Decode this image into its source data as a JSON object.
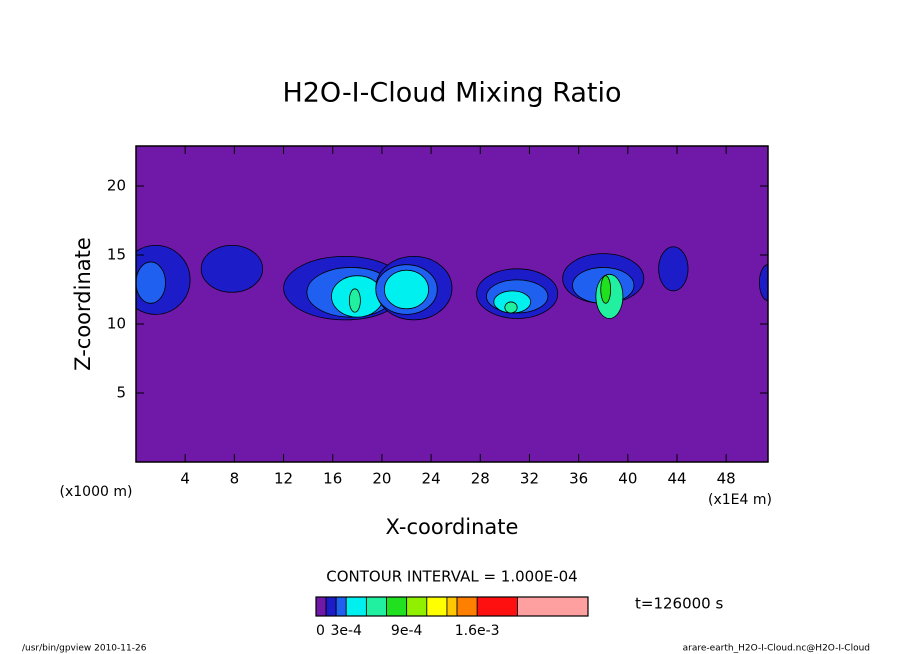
{
  "chart_data": {
    "type": "contour",
    "title": "H2O-I-Cloud Mixing Ratio",
    "xlabel": "X-coordinate",
    "ylabel": "Z-coordinate",
    "xunit": "(x1E4 m)",
    "yunit": "(x1000 m)",
    "xlim": [
      0,
      51.4
    ],
    "ylim": [
      0,
      22.9
    ],
    "xticks": [
      4,
      8,
      12,
      16,
      20,
      24,
      28,
      32,
      36,
      40,
      44,
      48
    ],
    "yticks": [
      5,
      10,
      15,
      20
    ],
    "background": "#7018a8",
    "regions": [
      {
        "x": 1.6,
        "z": 13.2,
        "w": 5.6,
        "h": 5.0,
        "level": 0.0001
      },
      {
        "x": 1.2,
        "z": 13.0,
        "w": 2.4,
        "h": 3.0,
        "level": 0.0002
      },
      {
        "x": 7.8,
        "z": 14.0,
        "w": 5.0,
        "h": 3.4,
        "level": 0.0001
      },
      {
        "x": 17.0,
        "z": 12.6,
        "w": 10.0,
        "h": 4.6,
        "level": 0.0001
      },
      {
        "x": 17.5,
        "z": 12.3,
        "w": 7.2,
        "h": 3.6,
        "level": 0.0002
      },
      {
        "x": 18.0,
        "z": 12.0,
        "w": 4.2,
        "h": 3.0,
        "level": 0.0003
      },
      {
        "x": 17.8,
        "z": 11.7,
        "w": 0.9,
        "h": 1.7,
        "level": 0.0005
      },
      {
        "x": 22.6,
        "z": 12.6,
        "w": 6.2,
        "h": 4.6,
        "level": 0.0001
      },
      {
        "x": 22.0,
        "z": 12.5,
        "w": 5.0,
        "h": 3.6,
        "level": 0.0002
      },
      {
        "x": 22.0,
        "z": 12.5,
        "w": 3.6,
        "h": 2.8,
        "level": 0.0003
      },
      {
        "x": 31.0,
        "z": 12.2,
        "w": 6.6,
        "h": 3.6,
        "level": 0.0001
      },
      {
        "x": 31.0,
        "z": 12.0,
        "w": 5.0,
        "h": 2.4,
        "level": 0.0002
      },
      {
        "x": 30.6,
        "z": 11.6,
        "w": 3.0,
        "h": 1.6,
        "level": 0.0003
      },
      {
        "x": 30.5,
        "z": 11.2,
        "w": 1.0,
        "h": 0.8,
        "level": 0.0005
      },
      {
        "x": 38.0,
        "z": 13.3,
        "w": 6.6,
        "h": 3.6,
        "level": 0.0001
      },
      {
        "x": 38.0,
        "z": 12.8,
        "w": 5.0,
        "h": 2.6,
        "level": 0.0002
      },
      {
        "x": 38.5,
        "z": 12.0,
        "w": 2.2,
        "h": 3.2,
        "level": 0.0005
      },
      {
        "x": 38.2,
        "z": 12.5,
        "w": 0.8,
        "h": 2.0,
        "level": 0.0007
      },
      {
        "x": 43.7,
        "z": 14.0,
        "w": 2.4,
        "h": 3.2,
        "level": 0.0001
      },
      {
        "x": 51.4,
        "z": 13.0,
        "w": 1.4,
        "h": 2.6,
        "level": 0.0001
      }
    ],
    "interval_label": "CONTOUR INTERVAL = 1.000E-04",
    "time_label": "t=126000 s",
    "colorbar": {
      "bounds": [
        0,
        0.0001,
        0.0002,
        0.0003,
        0.0005,
        0.0007,
        0.0009,
        0.0011,
        0.0013,
        0.0014,
        0.0016,
        0.002,
        0.0027
      ],
      "colors": [
        "#7018a8",
        "#1c1cc8",
        "#2060f0",
        "#00f0f0",
        "#20f0a0",
        "#20e020",
        "#90f000",
        "#ffff00",
        "#ffc800",
        "#ff8000",
        "#ff1010",
        "#ffa0a0"
      ],
      "ticks": [
        0,
        {
          "value": 0.0003,
          "label": "3e-4"
        },
        {
          "value": 0.0009,
          "label": "9e-4"
        },
        {
          "value": 0.0016,
          "label": "1.6e-3"
        }
      ]
    },
    "footer_left": "/usr/bin/gpview  2010-11-26",
    "footer_right": "arare-earth_H2O-I-Cloud.nc@H2O-I-Cloud"
  }
}
